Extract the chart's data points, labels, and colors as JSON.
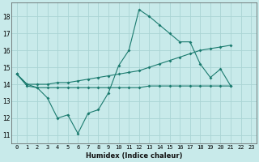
{
  "xlabel": "Humidex (Indice chaleur)",
  "xlim": [
    -0.5,
    23.5
  ],
  "ylim": [
    10.5,
    18.8
  ],
  "yticks": [
    11,
    12,
    13,
    14,
    15,
    16,
    17,
    18
  ],
  "xticks": [
    0,
    1,
    2,
    3,
    4,
    5,
    6,
    7,
    8,
    9,
    10,
    11,
    12,
    13,
    14,
    15,
    16,
    17,
    18,
    19,
    20,
    21,
    22,
    23
  ],
  "bg_color": "#c8eaea",
  "line_color": "#1a7a6e",
  "grid_color": "#aad4d4",
  "series1_x": [
    0,
    1,
    2,
    3,
    4,
    5,
    6,
    7,
    8,
    9,
    10,
    11,
    12,
    13,
    14,
    15,
    16,
    17,
    18,
    19,
    20,
    21
  ],
  "series1": [
    14.6,
    14.0,
    13.8,
    13.2,
    12.0,
    12.2,
    11.1,
    12.3,
    12.5,
    13.5,
    15.1,
    16.0,
    18.4,
    18.0,
    17.5,
    17.0,
    16.5,
    16.5,
    15.2,
    14.4,
    14.9,
    13.9
  ],
  "series2_x": [
    0,
    1,
    2,
    3,
    4,
    5,
    6,
    7,
    8,
    9,
    10,
    11,
    12,
    13,
    14,
    15,
    16,
    17,
    18,
    19,
    20,
    21
  ],
  "series2": [
    14.6,
    14.0,
    14.0,
    14.0,
    14.1,
    14.1,
    14.2,
    14.3,
    14.4,
    14.5,
    14.6,
    14.7,
    14.8,
    15.0,
    15.2,
    15.4,
    15.6,
    15.8,
    16.0,
    16.1,
    16.2,
    16.3
  ],
  "series3_x": [
    0,
    1,
    2,
    3,
    4,
    5,
    6,
    7,
    8,
    9,
    10,
    11,
    12,
    13,
    14,
    15,
    16,
    17,
    18,
    19,
    20,
    21
  ],
  "series3": [
    14.6,
    13.9,
    13.8,
    13.8,
    13.8,
    13.8,
    13.8,
    13.8,
    13.8,
    13.8,
    13.8,
    13.8,
    13.8,
    13.9,
    13.9,
    13.9,
    13.9,
    13.9,
    13.9,
    13.9,
    13.9,
    13.9
  ],
  "xlabel_fontsize": 6.0,
  "tick_fontsize": 5.0
}
